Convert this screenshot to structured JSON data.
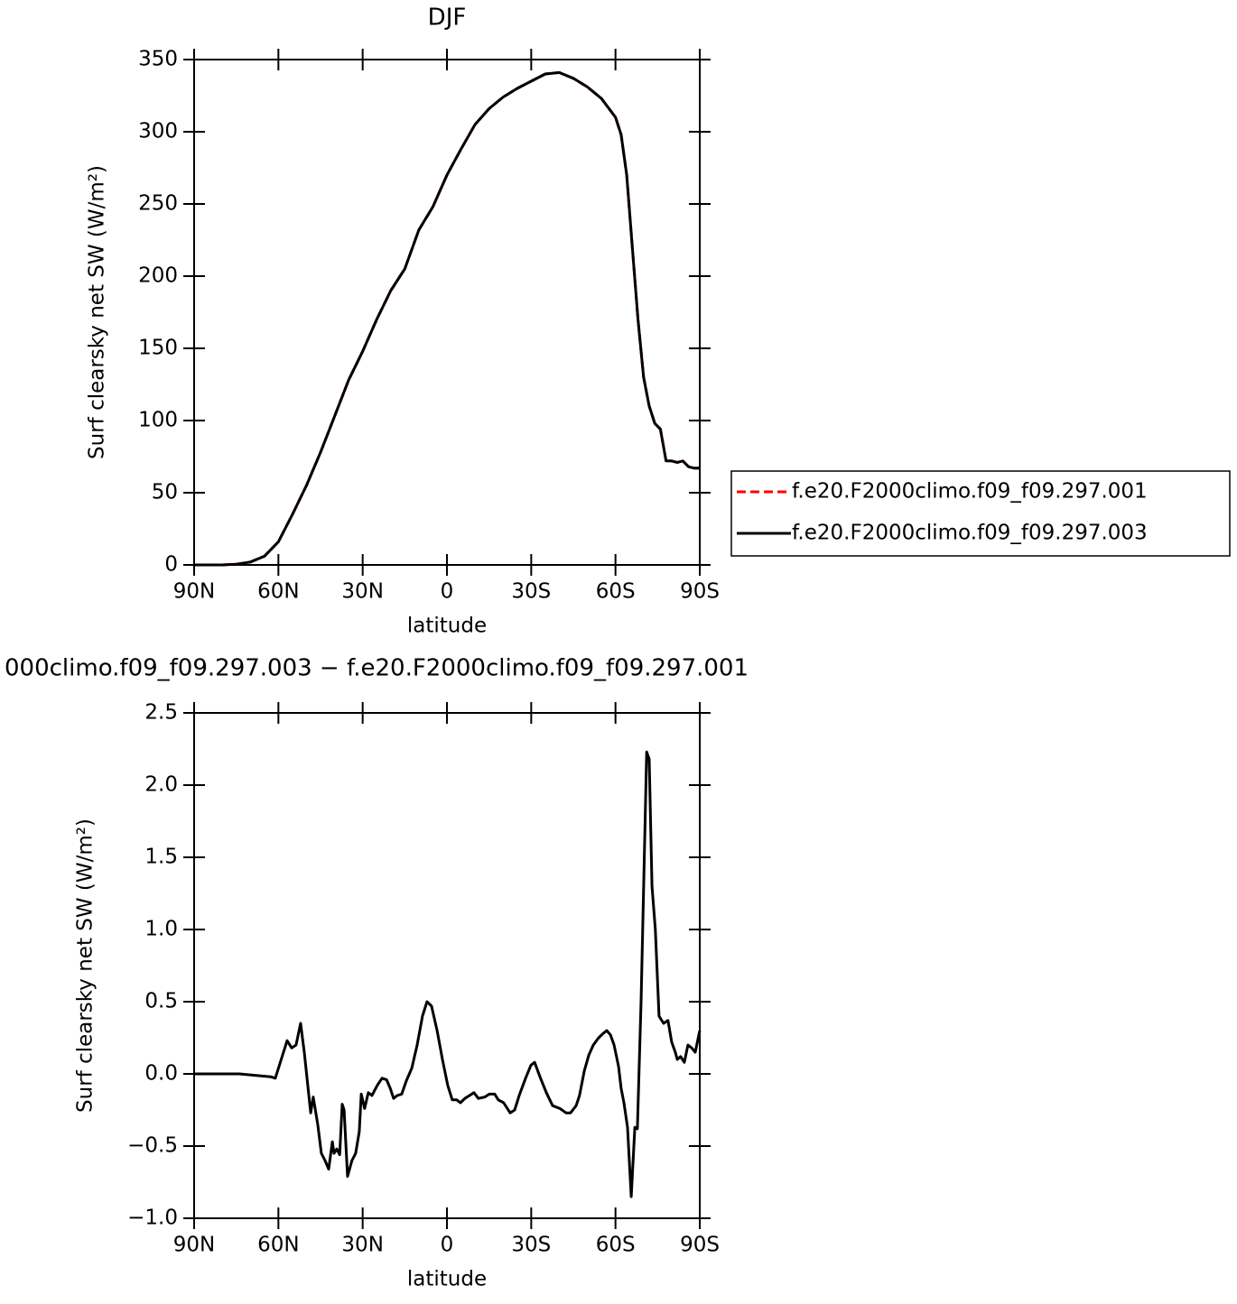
{
  "chart_data": [
    {
      "type": "line",
      "title": "DJF",
      "xlabel": "latitude",
      "ylabel": "Surf clearsky net SW (W/m²)",
      "xlim": [
        90,
        -90
      ],
      "ylim": [
        0,
        350
      ],
      "xticks": [
        {
          "value": 90,
          "label": "90N"
        },
        {
          "value": 60,
          "label": "60N"
        },
        {
          "value": 30,
          "label": "30N"
        },
        0,
        {
          "value": -30,
          "label": "30S"
        },
        {
          "value": -60,
          "label": "60S"
        },
        {
          "value": -90,
          "label": "90S"
        }
      ],
      "yticks": [
        0,
        50,
        100,
        150,
        200,
        250,
        300,
        350
      ],
      "legend": "outside-right",
      "x": [
        90,
        80,
        75,
        70,
        65,
        60,
        55,
        50,
        45,
        40,
        35,
        30,
        25,
        20,
        15,
        10,
        5,
        0,
        -5,
        -10,
        -15,
        -20,
        -25,
        -30,
        -35,
        -40,
        -45,
        -50,
        -55,
        -60,
        -62,
        -64,
        -66,
        -68,
        -70,
        -72,
        -74,
        -76,
        -78,
        -80,
        -82,
        -84,
        -86,
        -88,
        -90
      ],
      "series": [
        {
          "name": "f.e20.F2000climo.f09_f09.297.001",
          "color": "#ff0000",
          "style": "dashed",
          "values": [
            0,
            0,
            0.5,
            2,
            6,
            16,
            35,
            55,
            78,
            103,
            128,
            148,
            170,
            190,
            205,
            232,
            248,
            270,
            288,
            305,
            316,
            324,
            330,
            335,
            340,
            341,
            337,
            331,
            323,
            310,
            298,
            270,
            220,
            170,
            130,
            110,
            98,
            94,
            72,
            72,
            71,
            72,
            68,
            67,
            67
          ]
        },
        {
          "name": "f.e20.F2000climo.f09_f09.297.003",
          "color": "#000000",
          "style": "solid",
          "values": [
            0,
            0,
            0.5,
            2,
            6,
            16,
            35,
            55,
            78,
            103,
            128,
            148,
            170,
            190,
            205,
            232,
            248,
            270,
            288,
            305,
            316,
            324,
            330,
            335,
            340,
            341,
            337,
            331,
            323,
            310,
            298,
            270,
            220,
            170,
            130,
            110,
            98,
            94,
            72,
            72,
            71,
            72,
            68,
            67,
            67
          ]
        }
      ]
    },
    {
      "type": "line",
      "title": "000climo.f09_f09.297.003 − f.e20.F2000climo.f09_f09.297.001",
      "xlabel": "latitude",
      "ylabel": "Surf clearsky net SW (W/m²)",
      "xlim": [
        90,
        -90
      ],
      "ylim": [
        -1.0,
        2.5
      ],
      "xticks": [
        {
          "value": 90,
          "label": "90N"
        },
        {
          "value": 60,
          "label": "60N"
        },
        {
          "value": 30,
          "label": "30N"
        },
        0,
        {
          "value": -30,
          "label": "30S"
        },
        {
          "value": -60,
          "label": "60S"
        },
        {
          "value": -90,
          "label": "90S"
        }
      ],
      "yticks": [
        {
          "value": -1.0,
          "label": "−1.0"
        },
        {
          "value": -0.5,
          "label": "−0.5"
        },
        {
          "value": 0,
          "label": "0.0"
        },
        0.5,
        {
          "value": 1.0,
          "label": "1.0"
        },
        1.5,
        {
          "value": 2.0,
          "label": "2.0"
        },
        2.5
      ],
      "x": [
        90,
        73.9,
        62.7,
        61.1,
        56.9,
        55.3,
        53.7,
        52.1,
        50.8,
        48.5,
        47.6,
        46.0,
        44.7,
        43.4,
        42.1,
        40.8,
        40.2,
        39.2,
        38.2,
        37.3,
        36.6,
        35.4,
        33.8,
        32.5,
        31.2,
        30.5,
        29.3,
        28.0,
        26.7,
        24.8,
        23.1,
        21.5,
        20.2,
        19.0,
        17.7,
        16.1,
        14.5,
        12.5,
        10.6,
        8.7,
        7.1,
        5.5,
        3.5,
        1.6,
        -0.3,
        -1.9,
        -3.5,
        -4.8,
        -6.4,
        -8.0,
        -9.6,
        -11.2,
        -13.5,
        -15.1,
        -17.0,
        -18.3,
        -20.2,
        -22.5,
        -24.1,
        -25.7,
        -28.0,
        -29.9,
        -31.2,
        -33.1,
        -35.4,
        -37.6,
        -40.2,
        -42.4,
        -44.0,
        -46.0,
        -47.2,
        -48.9,
        -50.5,
        -52.1,
        -54.0,
        -55.6,
        -56.9,
        -58.2,
        -59.5,
        -61.1,
        -62.0,
        -63.0,
        -64.3,
        -65.6,
        -66.9,
        -67.8,
        -69.1,
        -71.1,
        -72.0,
        -73.0,
        -74.2,
        -75.5,
        -77.1,
        -78.7,
        -80.0,
        -81.3,
        -82.0,
        -83.2,
        -84.5,
        -85.8,
        -87.1,
        -88.4,
        -90
      ],
      "series": [
        {
          "color": "#000000",
          "style": "solid",
          "values": [
            0,
            0,
            -0.02,
            -0.03,
            0.23,
            0.18,
            0.2,
            0.35,
            0.15,
            -0.27,
            -0.16,
            -0.35,
            -0.55,
            -0.6,
            -0.66,
            -0.47,
            -0.55,
            -0.52,
            -0.56,
            -0.21,
            -0.25,
            -0.71,
            -0.6,
            -0.55,
            -0.4,
            -0.14,
            -0.24,
            -0.13,
            -0.15,
            -0.08,
            -0.03,
            -0.04,
            -0.1,
            -0.17,
            -0.15,
            -0.14,
            -0.05,
            0.04,
            0.2,
            0.4,
            0.5,
            0.47,
            0.3,
            0.1,
            -0.08,
            -0.18,
            -0.18,
            -0.2,
            -0.17,
            -0.15,
            -0.13,
            -0.17,
            -0.16,
            -0.14,
            -0.14,
            -0.18,
            -0.2,
            -0.27,
            -0.25,
            -0.15,
            -0.03,
            0.06,
            0.08,
            -0.02,
            -0.13,
            -0.22,
            -0.24,
            -0.27,
            -0.27,
            -0.22,
            -0.15,
            0.02,
            0.13,
            0.2,
            0.25,
            0.28,
            0.3,
            0.27,
            0.2,
            0.05,
            -0.1,
            -0.2,
            -0.37,
            -0.85,
            -0.37,
            -0.38,
            0.5,
            2.23,
            2.18,
            1.3,
            1.0,
            0.4,
            0.35,
            0.37,
            0.22,
            0.15,
            0.1,
            0.12,
            0.08,
            0.2,
            0.18,
            0.15,
            0.3
          ]
        }
      ]
    }
  ]
}
